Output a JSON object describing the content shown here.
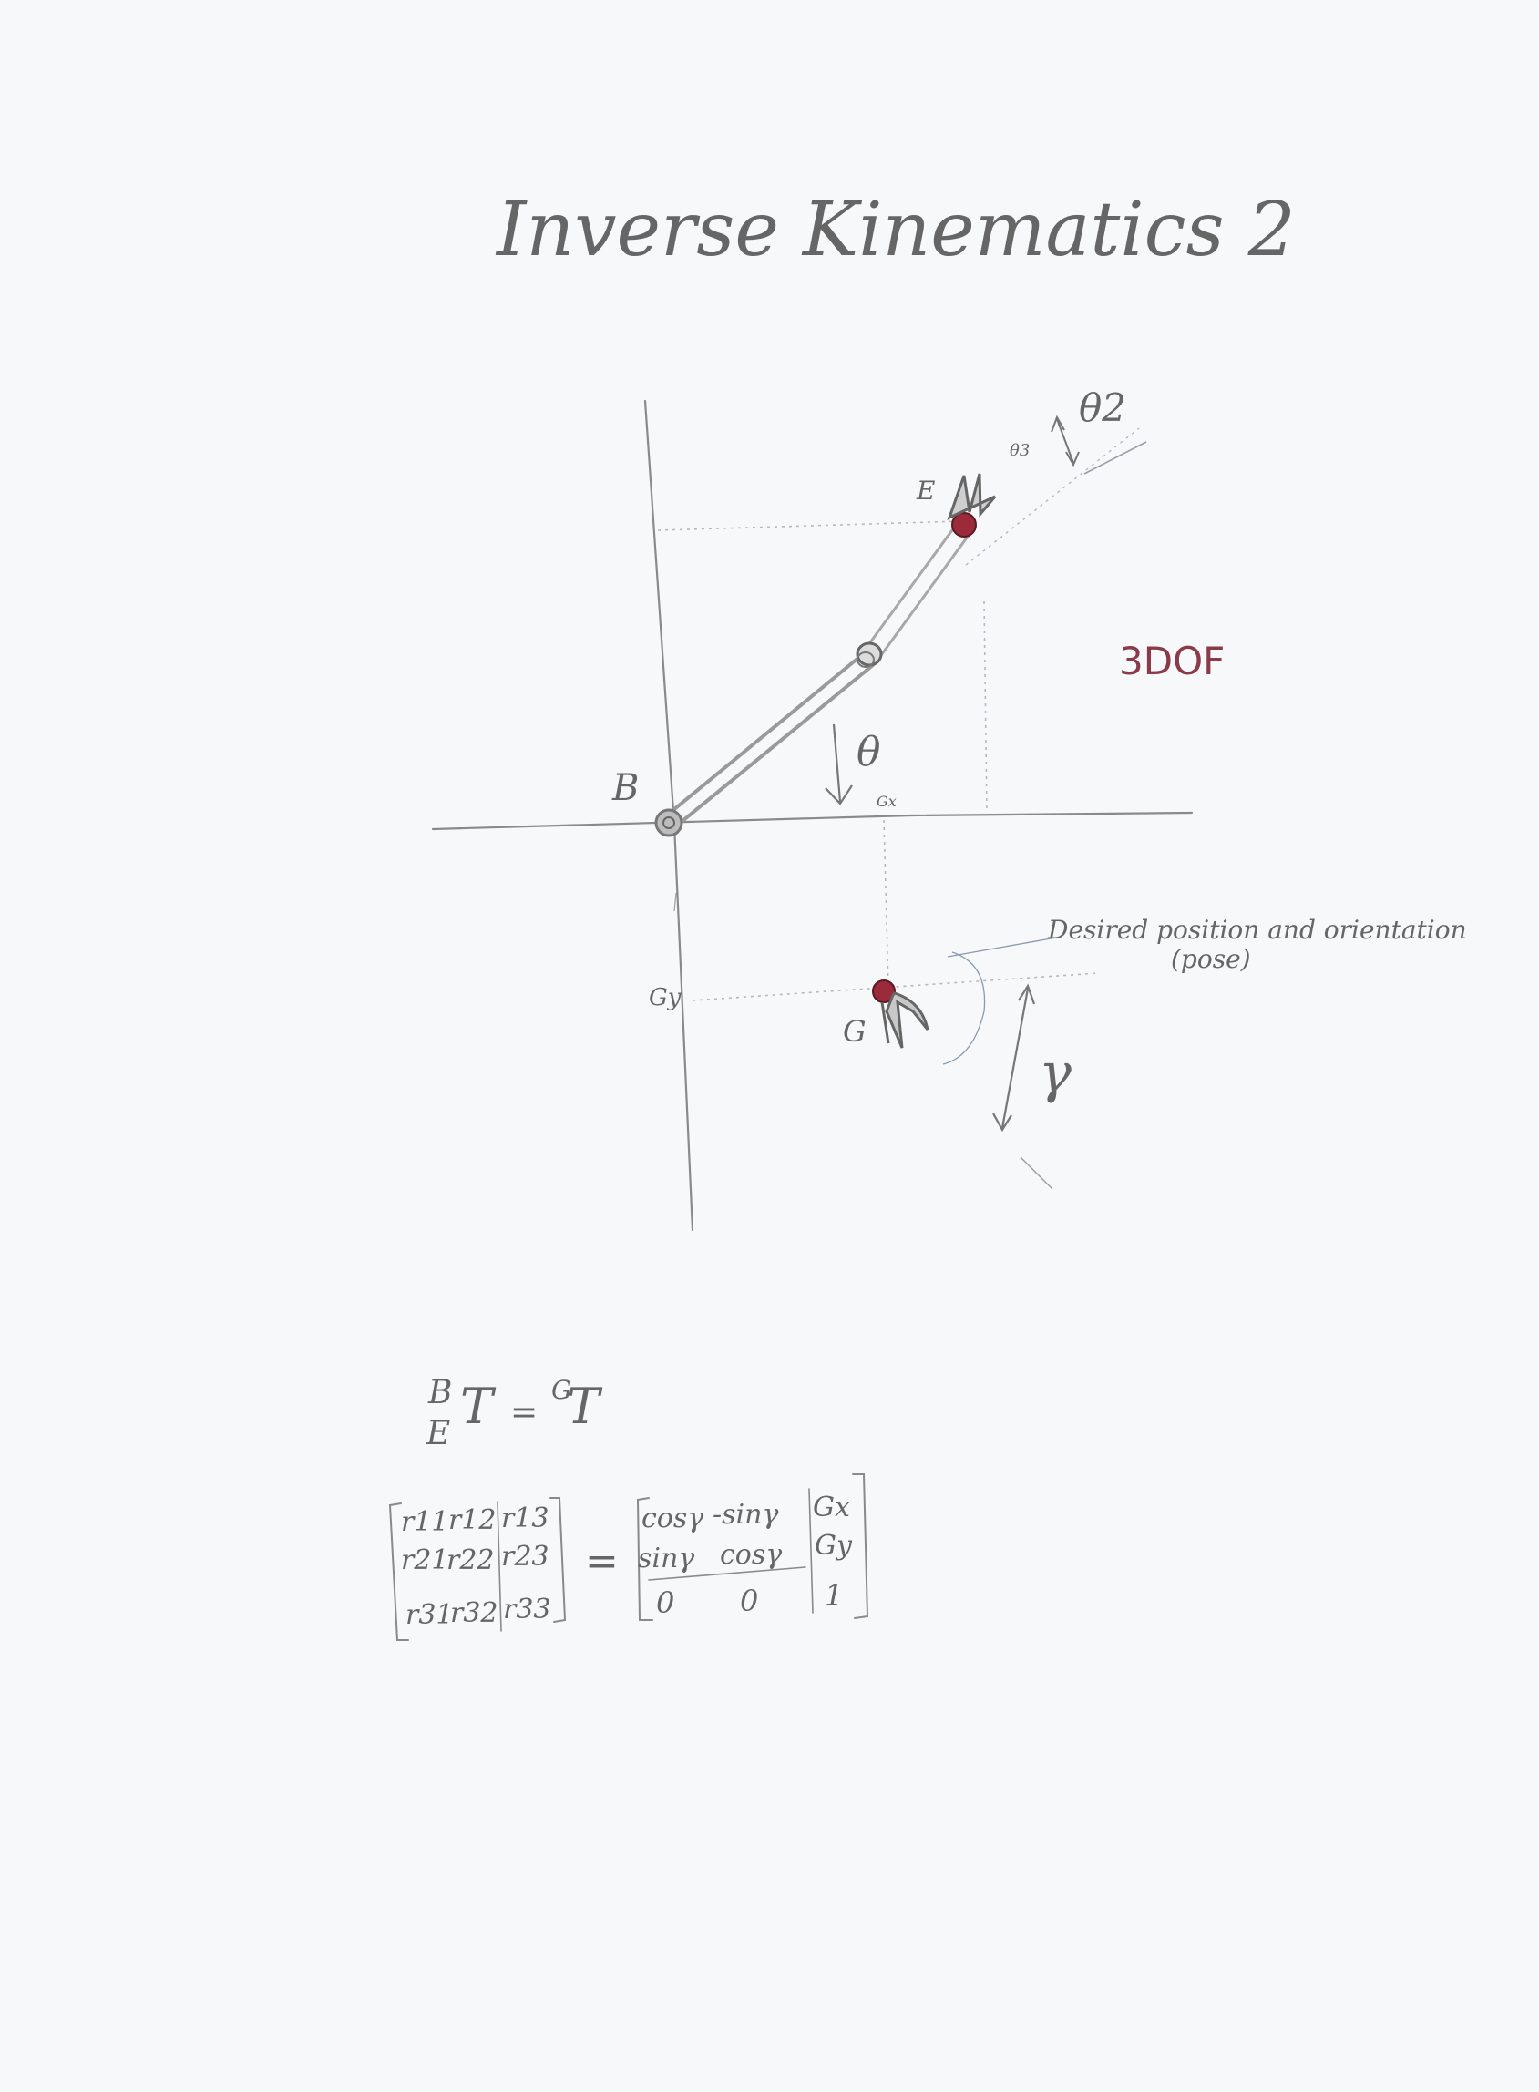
{
  "title": "Inverse Kinematics 2",
  "diagram": {
    "labels": {
      "base": "B",
      "effector": "E",
      "goal": "G",
      "gx": "Gx",
      "gy": "Gy",
      "theta1": "θ",
      "theta2": "θ2",
      "theta3": "θ3",
      "gamma": "γ",
      "dof": "3DOF",
      "pose_line1": "Desired position and orientation",
      "pose_line2": "(pose)"
    },
    "colors": {
      "pencil": "#8a8a8a",
      "joint_red": "#9b2a3a",
      "dof_text": "#8b3a4a",
      "pose_text": "#3c3f6a"
    }
  },
  "equations": {
    "eq1": {
      "lhs_sup": "B",
      "lhs_sub": "E",
      "lhs": "T",
      "eq": "=",
      "rhs_sup": "G",
      "rhs": "T"
    },
    "matrix_left": [
      [
        "r11",
        "r12",
        "r13"
      ],
      [
        "r21",
        "r22",
        "r23"
      ],
      [
        "r31",
        "r32",
        "r33"
      ]
    ],
    "equals": "=",
    "matrix_right": [
      [
        "cosγ",
        "-sinγ",
        "Gx"
      ],
      [
        "sinγ",
        "cosγ",
        "Gy"
      ],
      [
        "0",
        "0",
        "1"
      ]
    ]
  }
}
